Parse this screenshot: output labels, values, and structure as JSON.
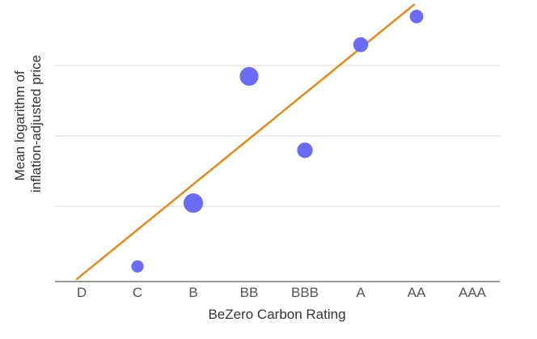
{
  "chart_data": {
    "type": "scatter",
    "title": "",
    "xlabel": "BeZero Carbon Rating",
    "ylabel_lines": [
      "Mean logarithm of",
      "inflation-adjusted price"
    ],
    "categories": [
      "D",
      "C",
      "B",
      "BB",
      "BBB",
      "A",
      "AA",
      "AAA"
    ],
    "y_range": [
      0,
      4
    ],
    "grid": true,
    "y_tick_labels_shown": false,
    "points": [
      {
        "category": "C",
        "y": 0.1,
        "relative_size": 0.45
      },
      {
        "category": "B",
        "y": 1.0,
        "relative_size": 1.0
      },
      {
        "category": "BB",
        "y": 2.8,
        "relative_size": 0.95
      },
      {
        "category": "BBB",
        "y": 1.75,
        "relative_size": 0.7
      },
      {
        "category": "A",
        "y": 3.25,
        "relative_size": 0.65
      },
      {
        "category": "AA",
        "y": 3.65,
        "relative_size": 0.55
      }
    ],
    "trendline": {
      "type": "linear",
      "start": {
        "category_index": 0,
        "y": -0.08
      },
      "end": {
        "category_index": 6,
        "y": 3.82
      }
    },
    "colors": {
      "points": "#6b6cf5",
      "trendline": "#e08a1e",
      "grid": "#d9d9d9",
      "axis": "#777777"
    }
  }
}
